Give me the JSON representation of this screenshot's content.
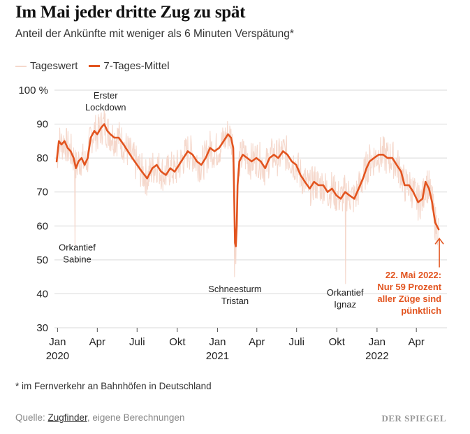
{
  "title": "Im Mai jeder dritte Zug zu spät",
  "subtitle": "Anteil der Ankünfte mit weniger als 6 Minuten Verspätung*",
  "legend": {
    "daily": "Tageswert",
    "avg": "7-Tages-Mittel"
  },
  "footnote": "* im Fernverkehr an Bahnhöfen in Deutschland",
  "source": {
    "prefix": "Quelle: ",
    "link": "Zugfinder",
    "suffix": ", eigene Berechnungen"
  },
  "brand": "DER SPIEGEL",
  "colors": {
    "avg": "#e2541f",
    "daily": "#f5d8cc",
    "annotation_highlight": "#e2541f",
    "grid": "#d9d9d9"
  },
  "chart_data": {
    "type": "line",
    "ylim": [
      30,
      100
    ],
    "y_ticks": [
      {
        "value": 100,
        "label": "100 %"
      },
      {
        "value": 90,
        "label": "90"
      },
      {
        "value": 80,
        "label": "80"
      },
      {
        "value": 70,
        "label": "70"
      },
      {
        "value": 60,
        "label": "60"
      },
      {
        "value": 50,
        "label": "50"
      },
      {
        "value": 40,
        "label": "40"
      },
      {
        "value": 30,
        "label": "30"
      }
    ],
    "x_range": [
      "2019-12-25",
      "2022-06-10"
    ],
    "x_ticks": [
      {
        "date": "2020-01-01",
        "label": "Jan",
        "year": "2020"
      },
      {
        "date": "2020-04-01",
        "label": "Apr",
        "year": ""
      },
      {
        "date": "2020-07-01",
        "label": "Juli",
        "year": ""
      },
      {
        "date": "2020-10-01",
        "label": "Okt",
        "year": ""
      },
      {
        "date": "2021-01-01",
        "label": "Jan",
        "year": "2021"
      },
      {
        "date": "2021-04-01",
        "label": "Apr",
        "year": ""
      },
      {
        "date": "2021-07-01",
        "label": "Juli",
        "year": ""
      },
      {
        "date": "2021-10-01",
        "label": "Okt",
        "year": ""
      },
      {
        "date": "2022-01-01",
        "label": "Jan",
        "year": "2022"
      },
      {
        "date": "2022-04-01",
        "label": "Apr",
        "year": ""
      }
    ],
    "series": [
      {
        "name": "7-Tages-Mittel",
        "points": [
          [
            "2019-12-30",
            79
          ],
          [
            "2020-01-04",
            85
          ],
          [
            "2020-01-10",
            84
          ],
          [
            "2020-01-17",
            85
          ],
          [
            "2020-01-24",
            83
          ],
          [
            "2020-01-31",
            82
          ],
          [
            "2020-02-07",
            80
          ],
          [
            "2020-02-12",
            77
          ],
          [
            "2020-02-18",
            79
          ],
          [
            "2020-02-25",
            80
          ],
          [
            "2020-03-03",
            78
          ],
          [
            "2020-03-10",
            80
          ],
          [
            "2020-03-17",
            86
          ],
          [
            "2020-03-25",
            88
          ],
          [
            "2020-04-01",
            87
          ],
          [
            "2020-04-10",
            89
          ],
          [
            "2020-04-17",
            90
          ],
          [
            "2020-04-24",
            88
          ],
          [
            "2020-05-01",
            87
          ],
          [
            "2020-05-10",
            86
          ],
          [
            "2020-05-20",
            86
          ],
          [
            "2020-05-31",
            84
          ],
          [
            "2020-06-10",
            82
          ],
          [
            "2020-06-20",
            80
          ],
          [
            "2020-07-01",
            78
          ],
          [
            "2020-07-12",
            76
          ],
          [
            "2020-07-24",
            74
          ],
          [
            "2020-08-05",
            77
          ],
          [
            "2020-08-15",
            78
          ],
          [
            "2020-08-25",
            76
          ],
          [
            "2020-09-05",
            75
          ],
          [
            "2020-09-15",
            77
          ],
          [
            "2020-09-25",
            76
          ],
          [
            "2020-10-05",
            78
          ],
          [
            "2020-10-15",
            80
          ],
          [
            "2020-10-25",
            82
          ],
          [
            "2020-11-05",
            81
          ],
          [
            "2020-11-15",
            79
          ],
          [
            "2020-11-25",
            78
          ],
          [
            "2020-12-05",
            80
          ],
          [
            "2020-12-15",
            83
          ],
          [
            "2020-12-25",
            82
          ],
          [
            "2021-01-05",
            83
          ],
          [
            "2021-01-15",
            85
          ],
          [
            "2021-01-25",
            87
          ],
          [
            "2021-02-01",
            86
          ],
          [
            "2021-02-06",
            83
          ],
          [
            "2021-02-08",
            70
          ],
          [
            "2021-02-10",
            55
          ],
          [
            "2021-02-12",
            54
          ],
          [
            "2021-02-14",
            60
          ],
          [
            "2021-02-16",
            72
          ],
          [
            "2021-02-20",
            79
          ],
          [
            "2021-02-28",
            81
          ],
          [
            "2021-03-10",
            80
          ],
          [
            "2021-03-20",
            79
          ],
          [
            "2021-03-31",
            80
          ],
          [
            "2021-04-10",
            79
          ],
          [
            "2021-04-20",
            77
          ],
          [
            "2021-04-30",
            80
          ],
          [
            "2021-05-10",
            81
          ],
          [
            "2021-05-20",
            80
          ],
          [
            "2021-05-31",
            82
          ],
          [
            "2021-06-10",
            81
          ],
          [
            "2021-06-20",
            79
          ],
          [
            "2021-06-30",
            78
          ],
          [
            "2021-07-10",
            75
          ],
          [
            "2021-07-20",
            73
          ],
          [
            "2021-07-31",
            71
          ],
          [
            "2021-08-10",
            73
          ],
          [
            "2021-08-20",
            72
          ],
          [
            "2021-08-31",
            72
          ],
          [
            "2021-09-10",
            70
          ],
          [
            "2021-09-20",
            71
          ],
          [
            "2021-09-30",
            69
          ],
          [
            "2021-10-10",
            68
          ],
          [
            "2021-10-20",
            70
          ],
          [
            "2021-10-30",
            69
          ],
          [
            "2021-11-10",
            68
          ],
          [
            "2021-11-20",
            71
          ],
          [
            "2021-11-30",
            74
          ],
          [
            "2021-12-08",
            77
          ],
          [
            "2021-12-15",
            79
          ],
          [
            "2021-12-25",
            80
          ],
          [
            "2022-01-05",
            81
          ],
          [
            "2022-01-15",
            81
          ],
          [
            "2022-01-25",
            80
          ],
          [
            "2022-02-05",
            80
          ],
          [
            "2022-02-15",
            78
          ],
          [
            "2022-02-25",
            76
          ],
          [
            "2022-03-05",
            72
          ],
          [
            "2022-03-15",
            72
          ],
          [
            "2022-03-25",
            70
          ],
          [
            "2022-04-05",
            67
          ],
          [
            "2022-04-15",
            68
          ],
          [
            "2022-04-22",
            73
          ],
          [
            "2022-04-30",
            71
          ],
          [
            "2022-05-07",
            67
          ],
          [
            "2022-05-14",
            61
          ],
          [
            "2022-05-22",
            59
          ]
        ]
      }
    ],
    "annotations": [
      {
        "date": "2020-04-20",
        "value": 97.5,
        "lines": [
          "Erster",
          "Lockdown"
        ],
        "highlight": false
      },
      {
        "date": "2020-02-15",
        "value": 52.7,
        "lines": [
          "Orkantief",
          "Sabine"
        ],
        "highlight": false
      },
      {
        "date": "2021-02-10",
        "value": 40.5,
        "lines": [
          "Schneesturm",
          "Tristan"
        ],
        "highlight": false
      },
      {
        "date": "2021-10-20",
        "value": 39.5,
        "lines": [
          "Orkantief",
          "Ignaz"
        ],
        "highlight": false
      },
      {
        "date": "2022-05-22",
        "value": 44.6,
        "lines": [
          "22. Mai 2022:",
          "Nur 59 Prozent",
          "aller Züge sind",
          "pünktlich"
        ],
        "highlight": true
      }
    ]
  }
}
